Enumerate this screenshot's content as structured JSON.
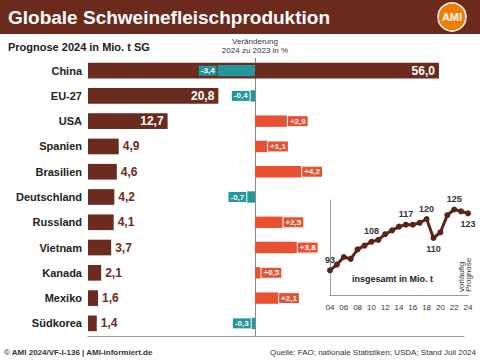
{
  "header": {
    "title": "Globale Schweinefleischproduktion",
    "logo": "AMI"
  },
  "footer": {
    "left": "© AMI 2024/VF-I-136 | AMI-informiert.de",
    "right": "Quelle: FAO; nationale Statistiken; USDA; Stand Juli 2024"
  },
  "chart_data": [
    {
      "type": "bar",
      "title": "Prognose 2024 in Mio. t SG",
      "orientation": "horizontal",
      "categories": [
        "China",
        "EU-27",
        "USA",
        "Spanien",
        "Brasilien",
        "Deutschland",
        "Russland",
        "Vietnam",
        "Kanada",
        "Mexiko",
        "Südkorea"
      ],
      "values": [
        56.0,
        20.8,
        12.7,
        4.9,
        4.6,
        4.2,
        4.1,
        3.7,
        2.1,
        1.6,
        1.4
      ],
      "value_labels": [
        "56,0",
        "20,8",
        "12,7",
        "4,9",
        "4,6",
        "4,2",
        "4,1",
        "3,7",
        "2,1",
        "1,6",
        "1,4"
      ],
      "color": "#6b2b1e",
      "xlim": [
        0,
        60
      ],
      "xticks": [
        0
      ],
      "data_labels": true,
      "tick_labels": "y"
    },
    {
      "type": "bar",
      "title": "Veränderung\n2024 zu 2023 in %",
      "orientation": "horizontal",
      "categories": [
        "China",
        "EU-27",
        "USA",
        "Spanien",
        "Brasilien",
        "Deutschland",
        "Russland",
        "Vietnam",
        "Kanada",
        "Mexiko",
        "Südkorea"
      ],
      "values": [
        -3.4,
        -0.4,
        2.9,
        1.1,
        4.2,
        -0.7,
        2.5,
        3.8,
        0.5,
        2.1,
        -0.3
      ],
      "value_labels": [
        "-3,4",
        "-0,4",
        "+2,9",
        "+1,1",
        "+4,2",
        "-0,7",
        "+2,5",
        "+3,8",
        "+0,5",
        "+2,1",
        "-0,3"
      ],
      "colors": [
        "#23979b",
        "#23979b",
        "#e9502f",
        "#e9502f",
        "#e9502f",
        "#23979b",
        "#e9502f",
        "#e9502f",
        "#e9502f",
        "#e9502f",
        "#23979b"
      ],
      "xlim": [
        -5,
        5
      ],
      "xticks": [
        0
      ],
      "grid": true,
      "data_labels": true,
      "tick_labels": false
    },
    {
      "type": "line",
      "title": "insgesamt in Mio. t",
      "categories": [
        "04",
        null,
        "06",
        null,
        "08",
        null,
        "10",
        null,
        "12",
        null,
        "14",
        null,
        "16",
        null,
        "18",
        null,
        "20",
        null,
        "22",
        null,
        "24"
      ],
      "values": [
        93,
        96,
        100,
        99,
        104,
        106,
        108,
        109,
        112,
        114,
        116,
        117,
        117,
        118,
        120,
        110,
        113,
        122,
        125,
        124,
        123
      ],
      "value_labels": [
        "93",
        null,
        null,
        null,
        null,
        null,
        "108",
        null,
        null,
        null,
        null,
        "117",
        null,
        null,
        "120",
        "110",
        null,
        null,
        "125",
        null,
        "123"
      ],
      "annotations": [
        null,
        null,
        null,
        null,
        null,
        null,
        null,
        null,
        null,
        null,
        null,
        null,
        null,
        null,
        null,
        null,
        null,
        null,
        null,
        "vorläufig",
        "Prognose"
      ],
      "color": "#5b2417",
      "marker": "circle",
      "ylim": [
        80,
        130
      ],
      "yticks": [],
      "data_labels": true,
      "tick_labels": "x"
    }
  ]
}
